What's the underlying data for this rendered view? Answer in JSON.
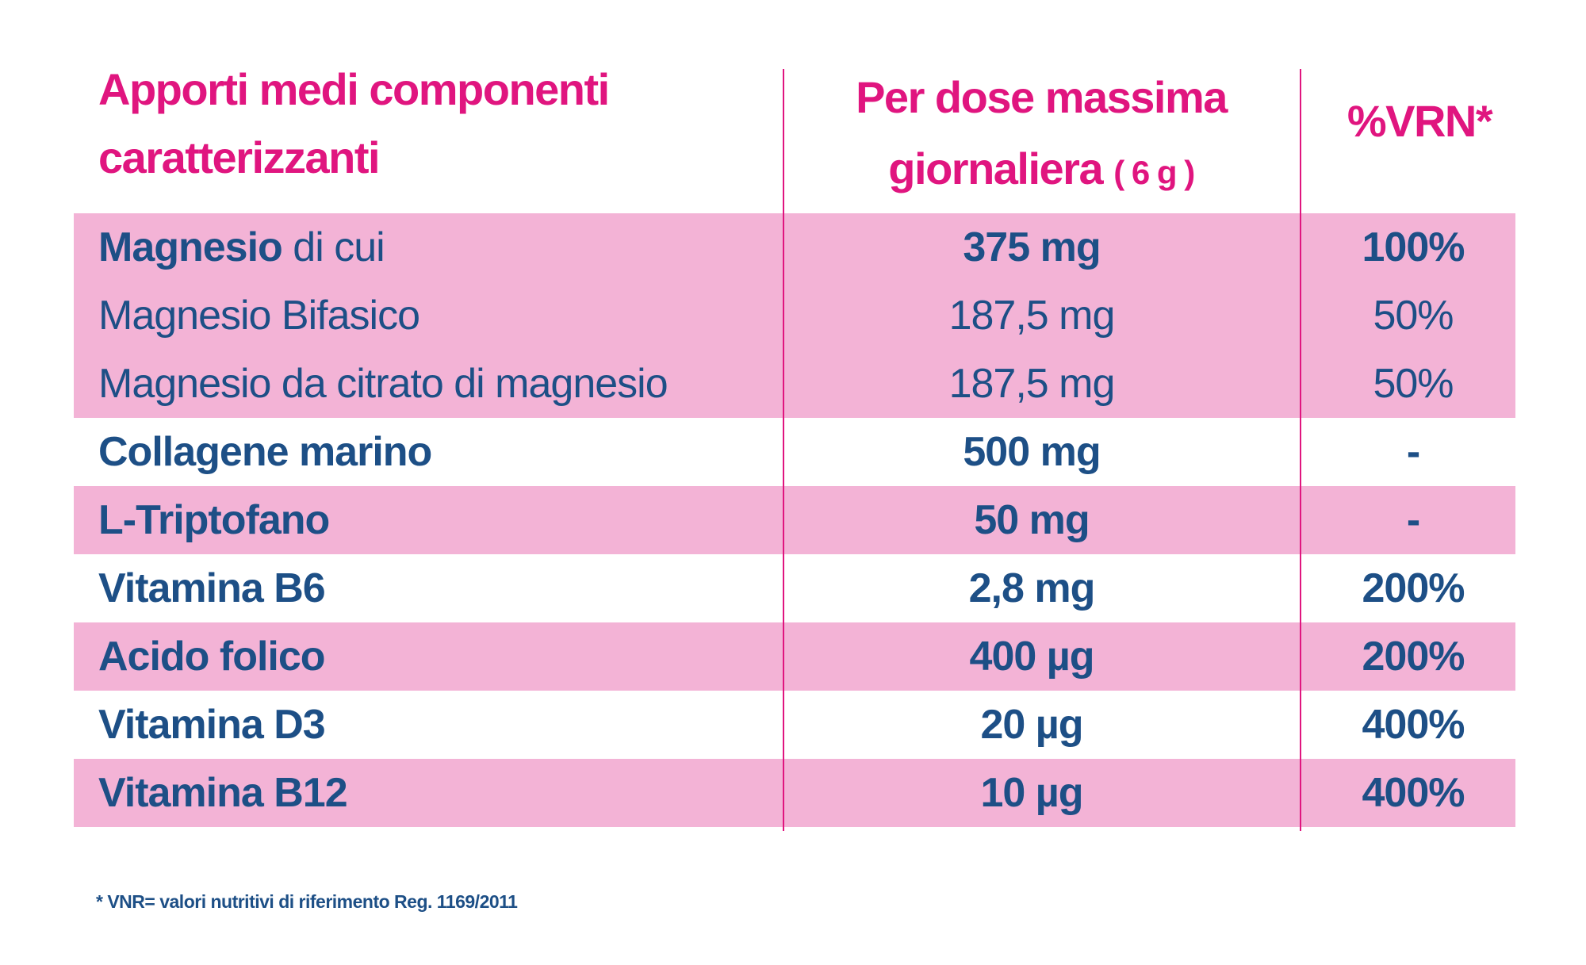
{
  "table": {
    "header": {
      "col1": "Apporti medi componenti caratterizzanti",
      "col2": "Per dose massima giornaliera",
      "col2_note": "( 6 g )",
      "col3": "%VRN*"
    },
    "rows": [
      {
        "name": "Magnesio",
        "name_suffix": " di cui",
        "dose": "375 mg",
        "vrn": "100%",
        "style": "bold",
        "shade": true
      },
      {
        "name": "Magnesio Bifasico",
        "dose": "187,5 mg",
        "vrn": "50%",
        "style": "light",
        "shade": true
      },
      {
        "name": "Magnesio da citrato di magnesio",
        "dose": "187,5 mg",
        "vrn": "50%",
        "style": "light",
        "shade": true
      },
      {
        "name": "Collagene marino",
        "dose": "500 mg",
        "vrn": "-",
        "style": "bold",
        "shade": false
      },
      {
        "name": "L-Triptofano",
        "dose": "50 mg",
        "vrn": "-",
        "style": "bold",
        "shade": true
      },
      {
        "name": "Vitamina B6",
        "dose": "2,8 mg",
        "vrn": "200%",
        "style": "bold",
        "shade": false
      },
      {
        "name": "Acido folico",
        "dose": "400 µg",
        "vrn": "200%",
        "style": "bold",
        "shade": true
      },
      {
        "name": "Vitamina D3",
        "dose": "20 µg",
        "vrn": "400%",
        "style": "bold",
        "shade": false
      },
      {
        "name": "Vitamina B12",
        "dose": "10 µg",
        "vrn": "400%",
        "style": "bold",
        "shade": true
      }
    ],
    "footnote": "* VNR= valori nutritivi di riferimento Reg. 1169/2011"
  }
}
